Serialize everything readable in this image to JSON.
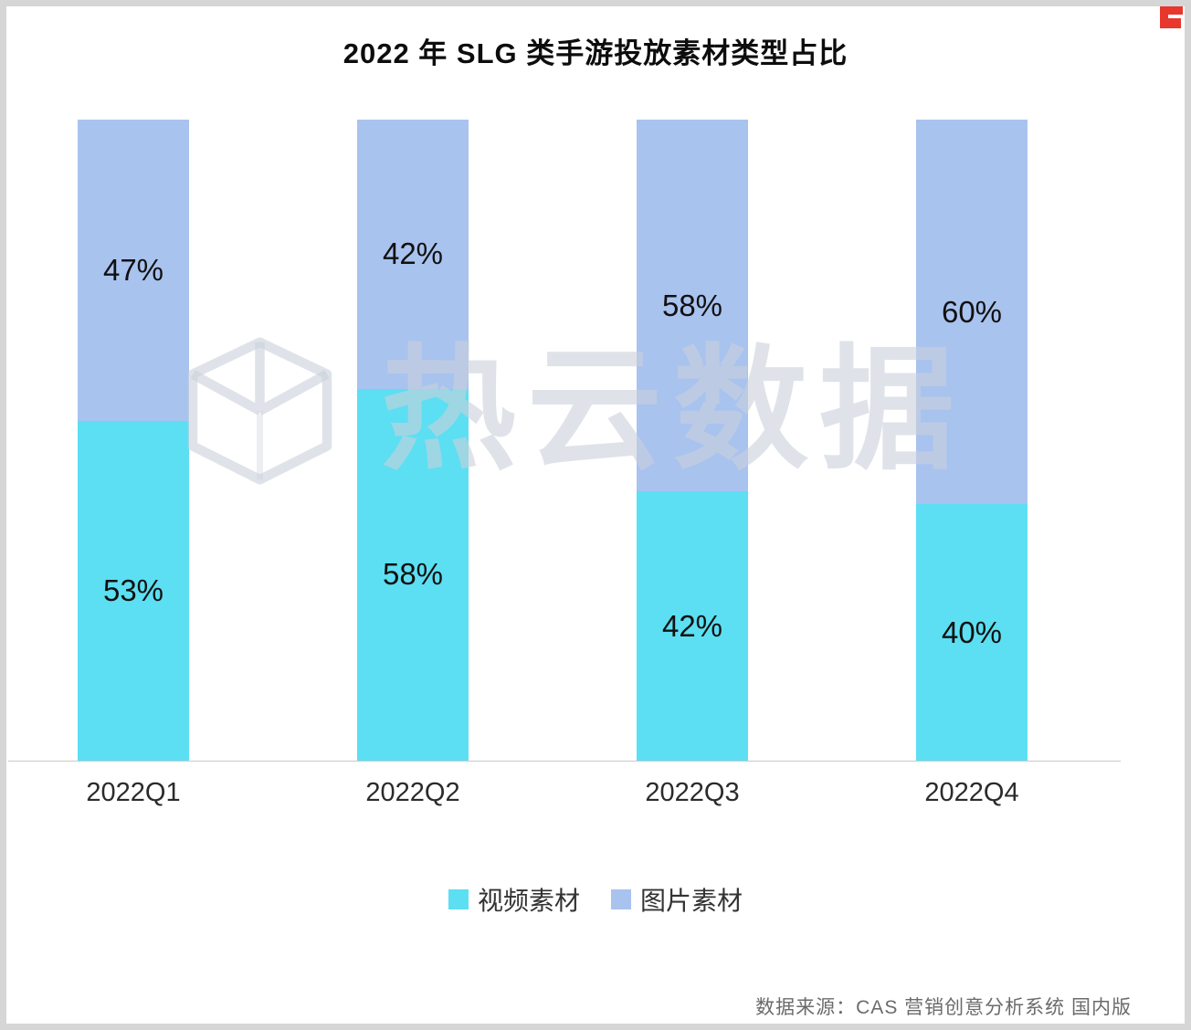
{
  "page": {
    "title": "2022 年 SLG 类手游投放素材类型占比",
    "source": "数据来源：CAS 营销创意分析系统 国内版",
    "watermark": "热云数据"
  },
  "colors": {
    "video_series": "#5CDFF2",
    "image_series": "#A9C3EF",
    "watermark": "#C9D0DB",
    "brand_red": "#E8372C"
  },
  "chart_data": {
    "type": "bar",
    "stacked": true,
    "title": "2022 年 SLG 类手游投放素材类型占比",
    "categories": [
      "2022Q1",
      "2022Q2",
      "2022Q3",
      "2022Q4"
    ],
    "series": [
      {
        "key": "video",
        "name": "视频素材",
        "color": "#5CDFF2",
        "values": [
          53,
          58,
          42,
          40
        ]
      },
      {
        "key": "image",
        "name": "图片素材",
        "color": "#A9C3EF",
        "values": [
          47,
          42,
          58,
          60
        ]
      }
    ],
    "value_format": "percent",
    "ylim": [
      0,
      100
    ],
    "xlabel": "",
    "ylabel": "",
    "grid": false,
    "legend_position": "bottom",
    "data_labels": "inside-center"
  }
}
